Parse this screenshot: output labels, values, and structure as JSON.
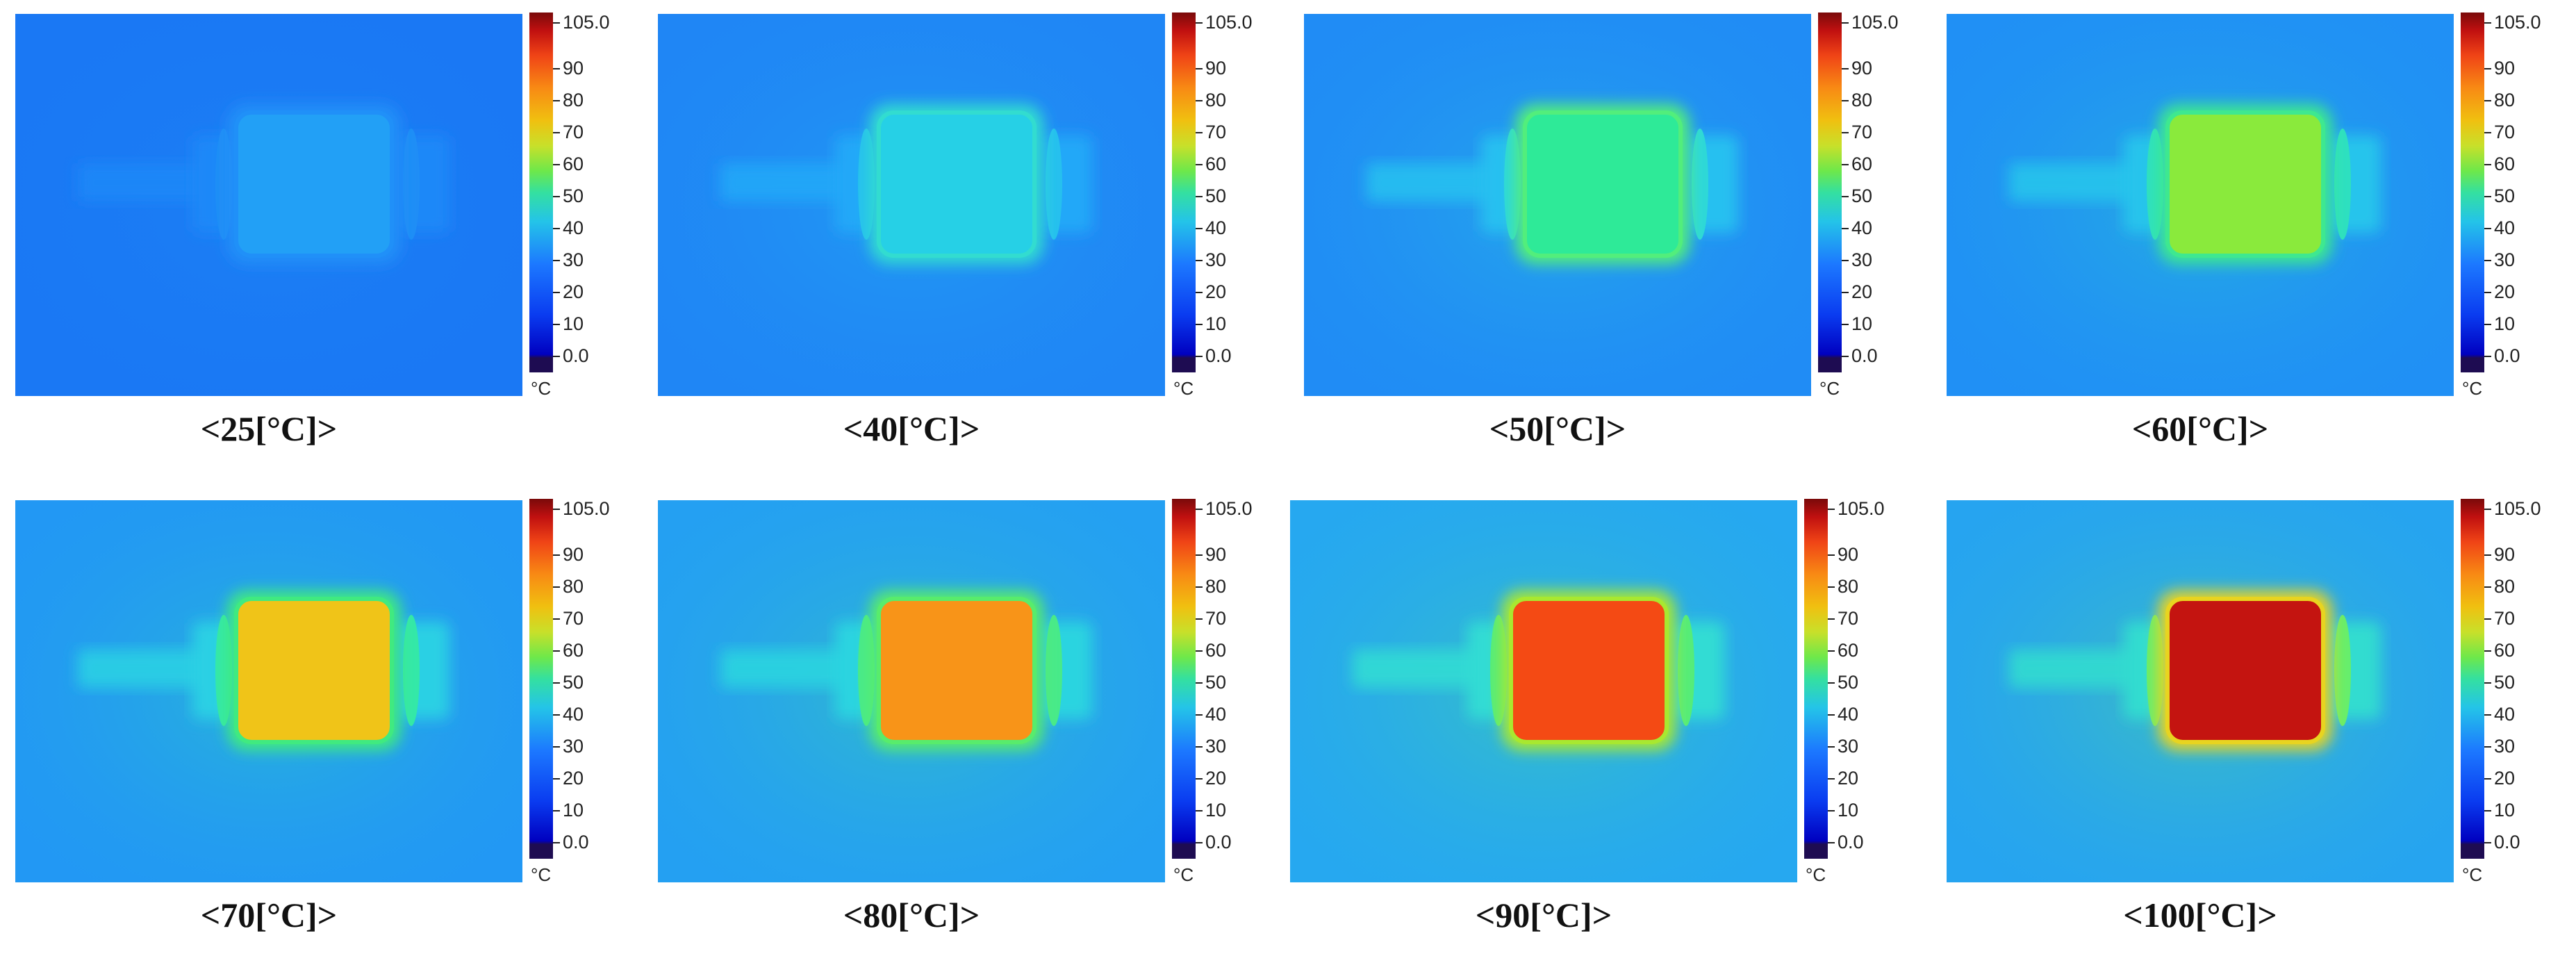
{
  "panels": [
    {
      "label": "<25[°C]>",
      "body": "#22a0f6",
      "edge": "#2090f8",
      "ends": "#1e88f8",
      "rim": "#1f8ef6",
      "bg": "#1a78f4"
    },
    {
      "label": "<40[°C]>",
      "body": "#26d0e6",
      "edge": "#32dcd0",
      "ends": "#22a8f8",
      "rim": "#26c0ee",
      "bg": "#1f86f5"
    },
    {
      "label": "<50[°C]>",
      "body": "#2eea98",
      "edge": "#52ee7c",
      "ends": "#26c0f0",
      "rim": "#2ed8d8",
      "bg": "#208cf5"
    },
    {
      "label": "<60[°C]>",
      "body": "#8aea3c",
      "edge": "#3ee890",
      "ends": "#28c4ec",
      "rim": "#2ee0c0",
      "bg": "#2090f5"
    },
    {
      "label": "<70[°C]>",
      "body": "#f0c418",
      "edge": "#40ea80",
      "ends": "#2ad0e4",
      "rim": "#34e8a8",
      "bg": "#2298f4"
    },
    {
      "label": "<80[°C]>",
      "body": "#f89418",
      "edge": "#58ec6c",
      "ends": "#2ad4e0",
      "rim": "#48ea8a",
      "bg": "#24a0f2"
    },
    {
      "label": "<90[°C]>",
      "body": "#f44a14",
      "edge": "#a8e830",
      "ends": "#30dcd4",
      "rim": "#54ec7a",
      "bg": "#26a8f0"
    },
    {
      "label": "<100[°C]>",
      "body": "#c41410",
      "edge": "#e8d420",
      "ends": "#30dcd0",
      "rim": "#66ee6c",
      "bg": "#26a4f0"
    }
  ],
  "scale": {
    "ticks": [
      "105.0",
      "90",
      "80",
      "70",
      "60",
      "50",
      "40",
      "30",
      "20",
      "10",
      "0.0"
    ],
    "unit": "°C"
  }
}
